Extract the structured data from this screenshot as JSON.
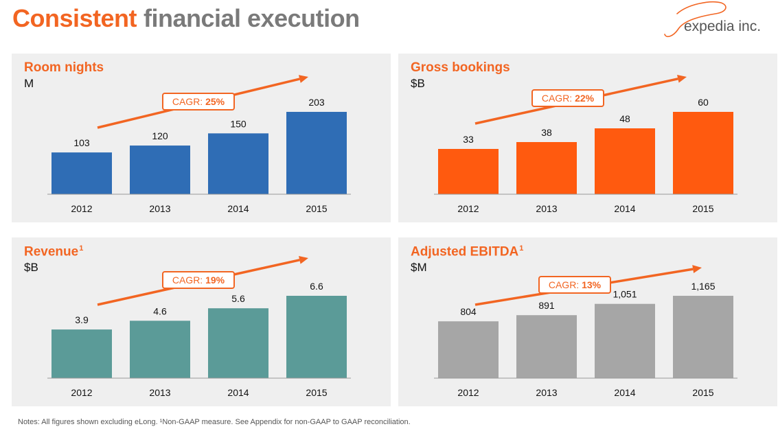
{
  "page": {
    "title_highlight": "Consistent",
    "title_rest": "financial execution",
    "logo_text": "expedia inc.",
    "notes": "Notes: All figures shown excluding eLong. ¹Non-GAAP measure. See Appendix for non-GAAP to GAAP reconciliation."
  },
  "colors": {
    "accent": "#f26522",
    "title_gray": "#7a7a7a",
    "panel_bg": "#efefef"
  },
  "chart_data": [
    {
      "type": "bar",
      "title": "Room nights",
      "title_sup": "",
      "unit": "M",
      "cagr_label": "CAGR:",
      "cagr_value": "25%",
      "categories": [
        "2012",
        "2013",
        "2014",
        "2015"
      ],
      "values": [
        103,
        120,
        150,
        203
      ],
      "value_labels": [
        "103",
        "120",
        "150",
        "203"
      ],
      "color": "#2f6db5"
    },
    {
      "type": "bar",
      "title": "Gross bookings",
      "title_sup": "",
      "unit": "$B",
      "cagr_label": "CAGR:",
      "cagr_value": "22%",
      "categories": [
        "2012",
        "2013",
        "2014",
        "2015"
      ],
      "values": [
        33,
        38,
        48,
        60
      ],
      "value_labels": [
        "33",
        "38",
        "48",
        "60"
      ],
      "color": "#ff5a0f"
    },
    {
      "type": "bar",
      "title": "Revenue",
      "title_sup": "1",
      "unit": "$B",
      "cagr_label": "CAGR:",
      "cagr_value": "19%",
      "categories": [
        "2012",
        "2013",
        "2014",
        "2015"
      ],
      "values": [
        3.9,
        4.6,
        5.6,
        6.6
      ],
      "value_labels": [
        "3.9",
        "4.6",
        "5.6",
        "6.6"
      ],
      "color": "#5b9b98"
    },
    {
      "type": "bar",
      "title": "Adjusted EBITDA",
      "title_sup": "1",
      "unit": "$M",
      "cagr_label": "CAGR:",
      "cagr_value": "13%",
      "categories": [
        "2012",
        "2013",
        "2014",
        "2015"
      ],
      "values": [
        804,
        891,
        1051,
        1165
      ],
      "value_labels": [
        "804",
        "891",
        "1,051",
        "1,165"
      ],
      "color": "#a6a6a6"
    }
  ]
}
